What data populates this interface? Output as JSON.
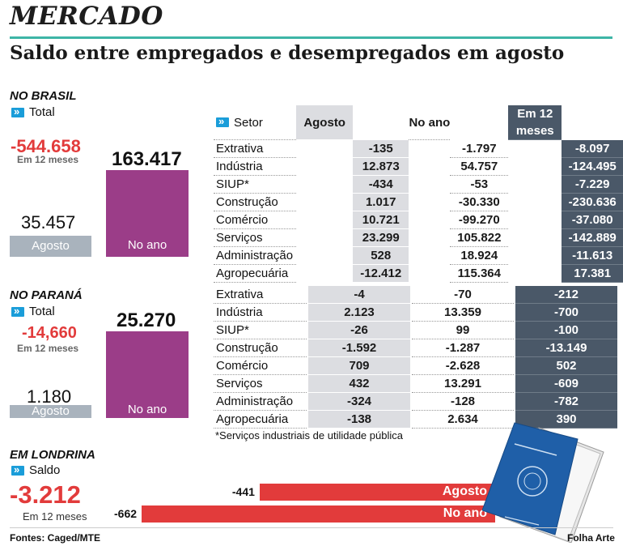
{
  "header": {
    "section": "MERCADO",
    "headline": "Saldo entre empregados e desempregados em agosto"
  },
  "colors": {
    "accent_rule": "#3db5a6",
    "purple": "#9b3d88",
    "gray_box": "#a9b3bd",
    "dark_col": "#4a5868",
    "red": "#e23b3b",
    "tag_blue": "#1a9dd9"
  },
  "brasil": {
    "title": "NO BRASIL",
    "tag": "Total",
    "em12_value": "-544.658",
    "em12_label": "Em 12 meses",
    "agosto_value": "35.457",
    "agosto_label": "Agosto",
    "no_ano_value": "163.417",
    "no_ano_label": "No ano"
  },
  "parana": {
    "title": "NO PARANÁ",
    "tag": "Total",
    "em12_value": "-14,660",
    "em12_label": "Em 12 meses",
    "agosto_value": "1.180",
    "agosto_label": "Agosto",
    "no_ano_value": "25.270",
    "no_ano_label": "No ano"
  },
  "londrina": {
    "title": "EM LONDRINA",
    "tag": "Saldo",
    "em12_value": "-3.212",
    "em12_label": "Em 12 meses"
  },
  "table_headers": {
    "setor": "Setor",
    "agosto": "Agosto",
    "no_ano": "No ano",
    "em12": "Em 12 meses"
  },
  "footnote": "*Serviços industriais de utilidade pública",
  "footer": {
    "source": "Fontes: Caged/MTE",
    "credit": "Folha Arte"
  },
  "chart_data": [
    {
      "type": "table",
      "title": "NO BRASIL",
      "columns": [
        "Setor",
        "Agosto",
        "No ano",
        "Em 12 meses"
      ],
      "rows": [
        [
          "Extrativa",
          "-135",
          "-1.797",
          "-8.097"
        ],
        [
          "Indústria",
          "12.873",
          "54.757",
          "-124.495"
        ],
        [
          "SIUP*",
          "-434",
          "-53",
          "-7.229"
        ],
        [
          "Construção",
          "1.017",
          "-30.330",
          "-230.636"
        ],
        [
          "Comércio",
          "10.721",
          "-99.270",
          "-37.080"
        ],
        [
          "Serviços",
          "23.299",
          "105.822",
          "-142.889"
        ],
        [
          "Administração",
          "528",
          "18.924",
          "-11.613"
        ],
        [
          "Agropecuária",
          "-12.412",
          "115.364",
          "17.381"
        ]
      ]
    },
    {
      "type": "table",
      "title": "NO PARANÁ",
      "rows": [
        [
          "Extrativa",
          "-4",
          "-70",
          "-212"
        ],
        [
          "Indústria",
          "2.123",
          "13.359",
          "-700"
        ],
        [
          "SIUP*",
          "-26",
          "99",
          "-100"
        ],
        [
          "Construção",
          "-1.592",
          "-1.287",
          "-13.149"
        ],
        [
          "Comércio",
          "709",
          "-2.628",
          "502"
        ],
        [
          "Serviços",
          "432",
          "13.291",
          "-609"
        ],
        [
          "Administração",
          "-324",
          "-128",
          "-782"
        ],
        [
          "Agropecuária",
          "-138",
          "2.634",
          "390"
        ]
      ]
    },
    {
      "type": "bar",
      "title": "EM LONDRINA",
      "categories": [
        "Agosto",
        "No ano"
      ],
      "values": [
        -441,
        -662
      ],
      "value_labels": [
        "-441",
        "-662"
      ]
    }
  ]
}
